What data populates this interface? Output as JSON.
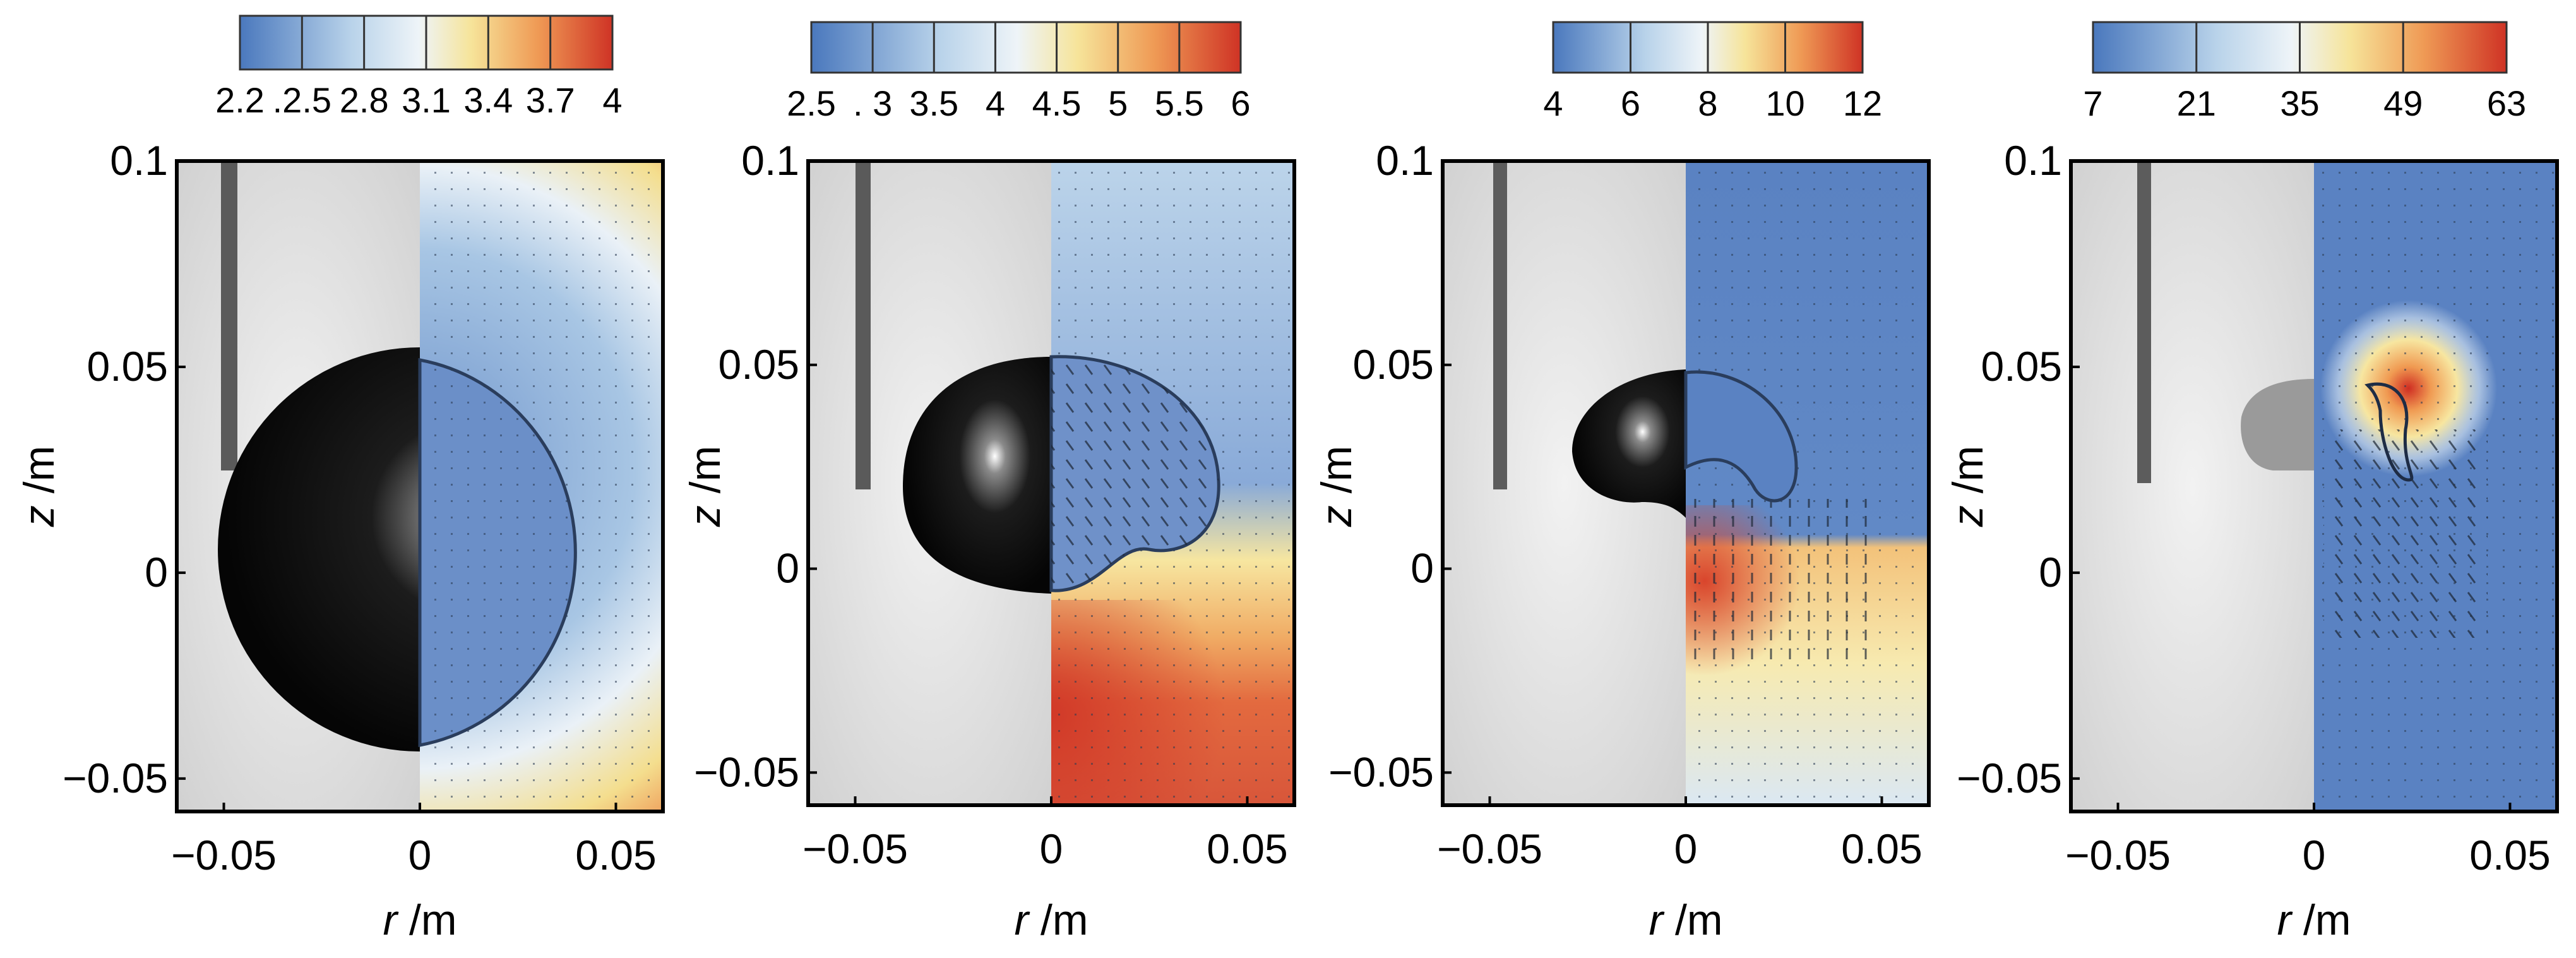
{
  "figure": {
    "axes": {
      "x_label_var": "r",
      "x_label_unit": " /m",
      "y_label_var": "z",
      "y_label_unit": " /m",
      "x_range": [
        -0.062,
        0.062
      ],
      "y_range": [
        -0.058,
        0.1
      ]
    },
    "panels": [
      {
        "id": "panel-1",
        "colorbar_ticks": [
          "2.2",
          ".2.5",
          "2.8",
          "3.1",
          "3.4",
          "3.7",
          "4"
        ],
        "x_ticks": [
          {
            "v": -0.05,
            "label": "−0.05"
          },
          {
            "v": 0,
            "label": "0"
          },
          {
            "v": 0.05,
            "label": "0.05"
          }
        ],
        "y_ticks": [
          {
            "v": 0.1,
            "label": "0.1"
          },
          {
            "v": 0.05,
            "label": "0.05"
          },
          {
            "v": 0,
            "label": "0"
          },
          {
            "v": -0.05,
            "label": "−0.05"
          }
        ],
        "bubble_shape": "sphere"
      },
      {
        "id": "panel-2",
        "colorbar_ticks": [
          "2.5",
          ". 3",
          "3.5",
          "4",
          "4.5",
          "5",
          "5.5",
          "6"
        ],
        "x_ticks": [
          {
            "v": -0.05,
            "label": "−0.05"
          },
          {
            "v": 0,
            "label": "0"
          },
          {
            "v": 0.05,
            "label": "0.05"
          }
        ],
        "y_ticks": [
          {
            "v": 0.1,
            "label": "0.1"
          },
          {
            "v": 0.05,
            "label": "0.05"
          },
          {
            "v": 0,
            "label": "0"
          },
          {
            "v": -0.05,
            "label": "−0.05"
          }
        ],
        "bubble_shape": "jet-forming"
      },
      {
        "id": "panel-3",
        "colorbar_ticks": [
          "4",
          "6",
          "8",
          "10",
          "12"
        ],
        "x_ticks": [
          {
            "v": -0.05,
            "label": "−0.05"
          },
          {
            "v": 0,
            "label": "0"
          },
          {
            "v": 0.05,
            "label": "0.05"
          }
        ],
        "y_ticks": [
          {
            "v": 0.1,
            "label": "0.1"
          },
          {
            "v": 0.05,
            "label": "0.05"
          },
          {
            "v": 0,
            "label": "0"
          },
          {
            "v": -0.05,
            "label": "−0.05"
          }
        ],
        "bubble_shape": "toroidal"
      },
      {
        "id": "panel-4",
        "colorbar_ticks": [
          "7",
          "21",
          "35",
          "49",
          "63"
        ],
        "x_ticks": [
          {
            "v": -0.05,
            "label": "−0.05"
          },
          {
            "v": 0,
            "label": "0"
          },
          {
            "v": 0.05,
            "label": "0.05"
          }
        ],
        "y_ticks": [
          {
            "v": 0.1,
            "label": "0.1"
          },
          {
            "v": 0.05,
            "label": "0.05"
          },
          {
            "v": 0,
            "label": "0"
          },
          {
            "v": -0.05,
            "label": "−0.05"
          }
        ],
        "bubble_shape": "collapsed"
      }
    ],
    "colors": {
      "cold": "#4a78bd",
      "mid": "#e9f1f7",
      "warm": "#f6e49a",
      "hot": "#d33826"
    }
  }
}
